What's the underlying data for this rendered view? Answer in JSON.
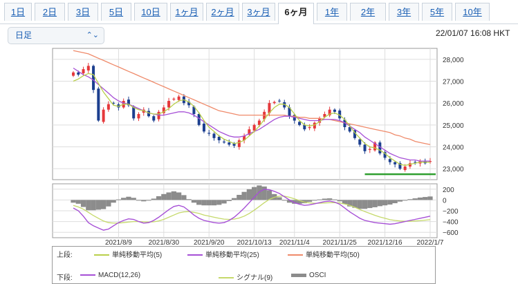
{
  "tabs": [
    "1日",
    "2日",
    "3日",
    "5日",
    "10日",
    "1ヶ月",
    "2ヶ月",
    "3ヶ月",
    "6ヶ月",
    "1年",
    "2年",
    "3年",
    "5年",
    "10年"
  ],
  "active_tab": 8,
  "toolbar": {
    "interval_label": "日足",
    "timestamp": "22/01/07 16:08 HKT"
  },
  "colors": {
    "sma5": "#b9cf4a",
    "sma25": "#a64fd6",
    "sma50": "#ef8a6a",
    "macd": "#a64fd6",
    "signal": "#c5d96a",
    "osci": "#8c8c8c",
    "up": "#e5383b",
    "down": "#1c3f8f",
    "support": "#2e9e2e"
  },
  "legend": {
    "upper_label": "上段:",
    "lower_label": "下段:",
    "upper_items": [
      "単純移動平均(5)",
      "単純移動平均(25)",
      "単純移動平均(50)"
    ],
    "lower_items": [
      "MACD(12,26)",
      "シグナル(9)",
      "OSCI"
    ]
  },
  "chart_data": {
    "type": "line",
    "x_tick_labels": [
      "2021/8/9",
      "2021/8/30",
      "2021/9/20",
      "2021/10/13",
      "2021/11/4",
      "2021/11/25",
      "2021/12/16",
      "2022/1/7"
    ],
    "price_axis": {
      "ylim": [
        22500,
        28500
      ],
      "ticks": [
        23000,
        24000,
        25000,
        26000,
        27000,
        28000
      ],
      "tick_labels": [
        "23,000",
        "24,000",
        "25,000",
        "26,000",
        "27,000",
        "28,000"
      ]
    },
    "macd_axis": {
      "ylim": [
        -700,
        300
      ],
      "ticks": [
        200,
        0,
        -200,
        -400,
        -600
      ],
      "tick_labels": [
        "200",
        "0",
        "−200",
        "−400",
        "−600"
      ]
    },
    "support_level": 22750,
    "closes": [
      27400,
      27300,
      27550,
      27700,
      26600,
      25200,
      25700,
      25950,
      26000,
      25800,
      26100,
      25900,
      25300,
      25500,
      25700,
      25400,
      25200,
      25600,
      25800,
      26100,
      26200,
      26300,
      26000,
      25900,
      25500,
      25000,
      24700,
      24600,
      24400,
      24300,
      24200,
      24100,
      24050,
      24300,
      24500,
      24800,
      25000,
      25200,
      25600,
      26000,
      26050,
      26100,
      25800,
      25400,
      25200,
      25000,
      24800,
      24900,
      25100,
      25300,
      25500,
      25700,
      25600,
      25300,
      24900,
      24700,
      24400,
      24100,
      23800,
      23900,
      24200,
      23700,
      23500,
      23300,
      23200,
      23000,
      23100,
      23250,
      23300,
      23350,
      23250,
      23350
    ],
    "sma5": [
      27000,
      27100,
      27250,
      27350,
      27300,
      26900,
      26500,
      26200,
      25900,
      25850,
      25950,
      25950,
      25800,
      25700,
      25650,
      25550,
      25500,
      25500,
      25600,
      25750,
      25950,
      26100,
      26150,
      26050,
      25850,
      25550,
      25200,
      24900,
      24700,
      24500,
      24350,
      24250,
      24150,
      24200,
      24300,
      24500,
      24700,
      24950,
      25250,
      25550,
      25800,
      25950,
      25950,
      25800,
      25500,
      25200,
      25000,
      24950,
      25000,
      25150,
      25350,
      25500,
      25550,
      25450,
      25250,
      24950,
      24650,
      24400,
      24150,
      24000,
      23950,
      23850,
      23700,
      23500,
      23350,
      23200,
      23150,
      23200,
      23250,
      23300,
      23300,
      23300
    ],
    "sma25": [
      27600,
      27450,
      27300,
      27200,
      27050,
      26850,
      26650,
      26450,
      26250,
      26100,
      26000,
      25950,
      25850,
      25750,
      25650,
      25550,
      25500,
      25450,
      25450,
      25500,
      25550,
      25600,
      25600,
      25550,
      25450,
      25300,
      25150,
      25000,
      24850,
      24700,
      24600,
      24500,
      24450,
      24450,
      24500,
      24600,
      24700,
      24800,
      24950,
      25100,
      25250,
      25350,
      25400,
      25400,
      25350,
      25300,
      25250,
      25200,
      25200,
      25200,
      25250,
      25250,
      25250,
      25200,
      25100,
      24950,
      24800,
      24650,
      24450,
      24300,
      24150,
      24000,
      23850,
      23700,
      23600,
      23500,
      23450,
      23400,
      23400,
      23350,
      23350,
      23350
    ],
    "sma50": [
      28400,
      28350,
      28300,
      28250,
      28150,
      28050,
      27950,
      27850,
      27750,
      27650,
      27550,
      27450,
      27350,
      27250,
      27150,
      27050,
      26950,
      26850,
      26750,
      26650,
      26550,
      26450,
      26350,
      26250,
      26150,
      26050,
      25950,
      25850,
      25750,
      25650,
      25600,
      25550,
      25500,
      25450,
      25450,
      25450,
      25450,
      25450,
      25450,
      25450,
      25450,
      25450,
      25450,
      25400,
      25400,
      25350,
      25350,
      25300,
      25300,
      25300,
      25250,
      25250,
      25200,
      25150,
      25100,
      25050,
      25000,
      24950,
      24900,
      24850,
      24800,
      24750,
      24700,
      24650,
      24550,
      24500,
      24400,
      24350,
      24250,
      24200,
      24150,
      24100
    ],
    "macd": [
      -150,
      -200,
      -300,
      -420,
      -480,
      -520,
      -560,
      -540,
      -480,
      -420,
      -380,
      -350,
      -360,
      -400,
      -430,
      -420,
      -380,
      -320,
      -250,
      -180,
      -120,
      -100,
      -130,
      -200,
      -280,
      -340,
      -380,
      -400,
      -420,
      -430,
      -420,
      -380,
      -320,
      -240,
      -150,
      -50,
      50,
      150,
      200,
      190,
      160,
      120,
      60,
      0,
      -50,
      -80,
      -100,
      -90,
      -70,
      -50,
      -30,
      -20,
      -40,
      -80,
      -150,
      -220,
      -280,
      -340,
      -380,
      -400,
      -420,
      -430,
      -440,
      -450,
      -440,
      -420,
      -400,
      -380,
      -360,
      -340,
      -320,
      -300
    ],
    "signal": [
      -100,
      -130,
      -170,
      -230,
      -290,
      -340,
      -390,
      -420,
      -430,
      -430,
      -420,
      -410,
      -400,
      -400,
      -405,
      -410,
      -405,
      -390,
      -360,
      -320,
      -280,
      -240,
      -220,
      -215,
      -230,
      -250,
      -280,
      -300,
      -320,
      -340,
      -355,
      -360,
      -355,
      -335,
      -300,
      -250,
      -190,
      -120,
      -50,
      10,
      50,
      70,
      70,
      50,
      20,
      -10,
      -40,
      -55,
      -60,
      -60,
      -55,
      -50,
      -50,
      -55,
      -75,
      -100,
      -135,
      -175,
      -215,
      -250,
      -285,
      -315,
      -340,
      -365,
      -380,
      -390,
      -395,
      -395,
      -390,
      -385,
      -375,
      -365
    ],
    "osci": [
      -50,
      -70,
      -130,
      -190,
      -190,
      -180,
      -170,
      -120,
      -50,
      10,
      40,
      60,
      40,
      0,
      -25,
      -10,
      25,
      70,
      110,
      140,
      160,
      140,
      90,
      15,
      -50,
      -90,
      -100,
      -100,
      -100,
      -90,
      -65,
      -20,
      35,
      95,
      150,
      200,
      240,
      270,
      250,
      180,
      110,
      50,
      -10,
      -50,
      -70,
      -70,
      -60,
      -35,
      -10,
      10,
      25,
      30,
      10,
      -25,
      -75,
      -120,
      -145,
      -165,
      -165,
      -150,
      -135,
      -115,
      -100,
      -85,
      -60,
      -30,
      -5,
      15,
      30,
      45,
      55,
      65
    ]
  }
}
